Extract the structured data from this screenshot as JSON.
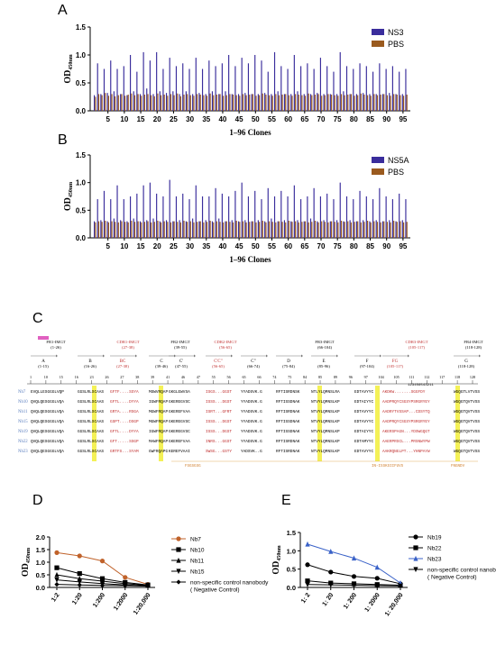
{
  "panels": {
    "A": {
      "label": "A"
    },
    "B": {
      "label": "B"
    },
    "C": {
      "label": "C"
    },
    "D": {
      "label": "D"
    },
    "E": {
      "label": "E"
    }
  },
  "chart_data": [
    {
      "id": "A",
      "type": "bar",
      "xlabel": "1–96 Clones",
      "ylabel": "OD450nm",
      "ylim": [
        0,
        1.5
      ],
      "yticks": [
        0.0,
        0.5,
        1.0,
        1.5
      ],
      "xticks": [
        5,
        10,
        15,
        20,
        25,
        30,
        35,
        40,
        45,
        50,
        55,
        60,
        65,
        70,
        75,
        80,
        85,
        90,
        95
      ],
      "legend_position": "top-right",
      "series": [
        {
          "name": "NS3",
          "color": "#3a2d9c",
          "values": [
            0.28,
            0.85,
            0.3,
            0.75,
            0.32,
            0.9,
            0.35,
            0.75,
            0.3,
            0.8,
            0.28,
            1.0,
            0.35,
            0.7,
            0.3,
            1.05,
            0.4,
            0.9,
            0.3,
            1.05,
            0.35,
            0.75,
            0.32,
            0.95,
            0.35,
            0.8,
            0.3,
            0.85,
            0.35,
            0.75,
            0.3,
            0.95,
            0.32,
            0.75,
            0.3,
            0.9,
            0.35,
            0.8,
            0.3,
            0.85,
            0.35,
            1.0,
            0.3,
            0.8,
            0.3,
            0.95,
            0.32,
            0.85,
            0.3,
            1.0,
            0.3,
            0.9,
            0.32,
            0.7,
            0.3,
            1.05,
            0.35,
            0.8,
            0.3,
            0.75,
            0.3,
            1.0,
            0.35,
            0.8,
            0.3,
            0.85,
            0.3,
            0.75,
            0.32,
            0.95,
            0.3,
            0.8,
            0.3,
            0.7,
            0.3,
            1.05,
            0.35,
            0.8,
            0.3,
            0.75,
            0.3,
            0.85,
            0.32,
            0.8,
            0.3,
            0.7,
            0.3,
            0.85,
            0.3,
            0.75,
            0.32,
            0.8,
            0.3,
            0.7,
            0.3,
            0.75
          ]
        },
        {
          "name": "PBS",
          "color": "#9a5a1e",
          "values": [
            0.25,
            0.3,
            0.28,
            0.32,
            0.27,
            0.3,
            0.26,
            0.28,
            0.3,
            0.27,
            0.29,
            0.31,
            0.28,
            0.3,
            0.27,
            0.29,
            0.3,
            0.28,
            0.26,
            0.31,
            0.28,
            0.29,
            0.27,
            0.3,
            0.28,
            0.31,
            0.26,
            0.29,
            0.3,
            0.28,
            0.27,
            0.3,
            0.29,
            0.28,
            0.27,
            0.31,
            0.28,
            0.29,
            0.3,
            0.27,
            0.28,
            0.3,
            0.29,
            0.28,
            0.27,
            0.3,
            0.28,
            0.29,
            0.3,
            0.27,
            0.28,
            0.31,
            0.29,
            0.28,
            0.27,
            0.3,
            0.28,
            0.29,
            0.3,
            0.28,
            0.27,
            0.3,
            0.29,
            0.28,
            0.27,
            0.31,
            0.28,
            0.29,
            0.3,
            0.27,
            0.28,
            0.3,
            0.29,
            0.28,
            0.27,
            0.3,
            0.28,
            0.29,
            0.3,
            0.27,
            0.28,
            0.31,
            0.29,
            0.28,
            0.27,
            0.3,
            0.28,
            0.29,
            0.3,
            0.28,
            0.27,
            0.3,
            0.29,
            0.28,
            0.27,
            0.29
          ]
        }
      ]
    },
    {
      "id": "B",
      "type": "bar",
      "xlabel": "1–96 Clones",
      "ylabel": "OD450nm",
      "ylim": [
        0,
        1.5
      ],
      "yticks": [
        0.0,
        0.5,
        1.0,
        1.5
      ],
      "xticks": [
        5,
        10,
        15,
        20,
        25,
        30,
        35,
        40,
        45,
        50,
        55,
        60,
        65,
        70,
        75,
        80,
        85,
        90,
        95
      ],
      "legend_position": "top-right",
      "series": [
        {
          "name": "NS5A",
          "color": "#3a2d9c",
          "values": [
            0.3,
            0.7,
            0.32,
            0.85,
            0.3,
            0.7,
            0.35,
            0.95,
            0.32,
            0.7,
            0.3,
            0.75,
            0.35,
            0.8,
            0.3,
            0.95,
            0.32,
            1.0,
            0.35,
            0.8,
            0.3,
            0.75,
            0.32,
            1.05,
            0.3,
            0.75,
            0.32,
            0.8,
            0.3,
            0.7,
            0.35,
            0.95,
            0.3,
            0.75,
            0.32,
            0.75,
            0.3,
            0.9,
            0.35,
            0.8,
            0.3,
            0.75,
            0.32,
            0.85,
            0.3,
            1.0,
            0.32,
            0.75,
            0.3,
            0.85,
            0.32,
            0.7,
            0.3,
            0.9,
            0.35,
            0.75,
            0.3,
            0.85,
            0.32,
            0.75,
            0.3,
            0.95,
            0.32,
            0.7,
            0.3,
            0.75,
            0.35,
            0.9,
            0.3,
            0.75,
            0.32,
            0.8,
            0.3,
            0.7,
            0.32,
            1.0,
            0.3,
            0.75,
            0.32,
            0.7,
            0.3,
            0.85,
            0.32,
            0.75,
            0.3,
            0.7,
            0.32,
            0.9,
            0.3,
            0.75,
            0.32,
            0.7,
            0.3,
            0.8,
            0.32,
            0.7
          ]
        },
        {
          "name": "PBS",
          "color": "#9a5a1e",
          "values": [
            0.28,
            0.3,
            0.29,
            0.31,
            0.28,
            0.3,
            0.29,
            0.28,
            0.3,
            0.29,
            0.28,
            0.31,
            0.29,
            0.3,
            0.28,
            0.29,
            0.3,
            0.28,
            0.29,
            0.31,
            0.28,
            0.3,
            0.29,
            0.28,
            0.3,
            0.29,
            0.28,
            0.31,
            0.29,
            0.3,
            0.28,
            0.29,
            0.3,
            0.28,
            0.29,
            0.31,
            0.28,
            0.3,
            0.29,
            0.28,
            0.3,
            0.29,
            0.28,
            0.31,
            0.29,
            0.3,
            0.28,
            0.29,
            0.3,
            0.28,
            0.29,
            0.31,
            0.28,
            0.3,
            0.29,
            0.28,
            0.3,
            0.29,
            0.28,
            0.31,
            0.29,
            0.3,
            0.28,
            0.29,
            0.3,
            0.28,
            0.29,
            0.31,
            0.28,
            0.3,
            0.29,
            0.28,
            0.3,
            0.29,
            0.28,
            0.31,
            0.29,
            0.3,
            0.28,
            0.29,
            0.3,
            0.28,
            0.29,
            0.31,
            0.28,
            0.3,
            0.29,
            0.28,
            0.3,
            0.29,
            0.28,
            0.31,
            0.29,
            0.3,
            0.28,
            0.29
          ]
        }
      ]
    },
    {
      "id": "D",
      "type": "line",
      "ylabel": "OD450nm",
      "ylim": [
        0,
        2.0
      ],
      "yticks": [
        0.0,
        0.5,
        1.0,
        1.5,
        2.0
      ],
      "categories": [
        "1:2",
        "1:20",
        "1:200",
        "1:2000",
        "1:20,000"
      ],
      "legend_position": "right",
      "series": [
        {
          "name": "Nb7",
          "color": "#c0622a",
          "marker": "circle",
          "values": [
            1.38,
            1.25,
            1.05,
            0.4,
            0.12
          ]
        },
        {
          "name": "Nb10",
          "color": "#000000",
          "marker": "square",
          "values": [
            0.78,
            0.55,
            0.35,
            0.2,
            0.1
          ]
        },
        {
          "name": "Nb11",
          "color": "#000000",
          "marker": "triangle",
          "values": [
            0.5,
            0.35,
            0.25,
            0.15,
            0.08
          ]
        },
        {
          "name": "Nb15",
          "color": "#000000",
          "marker": "triangle-down",
          "values": [
            0.3,
            0.22,
            0.15,
            0.1,
            0.06
          ]
        },
        {
          "name": "non-specific control nanobody\n( Negative Control)",
          "color": "#000000",
          "marker": "diamond",
          "values": [
            0.12,
            0.1,
            0.08,
            0.07,
            0.05
          ]
        }
      ]
    },
    {
      "id": "E",
      "type": "line",
      "ylabel": "OD450nm",
      "ylim": [
        0,
        1.5
      ],
      "yticks": [
        0.0,
        0.5,
        1.0,
        1.5
      ],
      "categories": [
        "1: 2",
        "1: 20",
        "1: 200",
        "1: 2000",
        "1: 20,000"
      ],
      "legend_position": "right",
      "series": [
        {
          "name": "Nb19",
          "color": "#000000",
          "marker": "circle",
          "values": [
            0.62,
            0.42,
            0.3,
            0.25,
            0.1
          ]
        },
        {
          "name": "Nb22",
          "color": "#000000",
          "marker": "square",
          "values": [
            0.18,
            0.12,
            0.1,
            0.08,
            0.06
          ]
        },
        {
          "name": "Nb23",
          "color": "#3a62c8",
          "marker": "triangle",
          "values": [
            1.18,
            0.98,
            0.8,
            0.55,
            0.12
          ]
        },
        {
          "name": "non-specific control nanobody\n( Negative Control)",
          "color": "#000000",
          "marker": "triangle-down",
          "values": [
            0.08,
            0.07,
            0.06,
            0.05,
            0.04
          ]
        }
      ]
    }
  ],
  "alignment": {
    "regions": [
      {
        "name": "FR1-IMGT",
        "range": "(1-26)",
        "sub": "A",
        "subrange": "(1-15)",
        "color": "#000"
      },
      {
        "name": "",
        "range": "",
        "sub": "B",
        "subrange": "(16-26)",
        "color": "#000"
      },
      {
        "name": "CDR1-IMGT",
        "range": "(27-38)",
        "sub": "BC",
        "subrange": "(27-38)",
        "color": "#c03030"
      },
      {
        "name": "FR2-IMGT",
        "range": "(39-55)",
        "sub": "C",
        "subrange": "(39-46)",
        "color": "#000"
      },
      {
        "name": "",
        "range": "",
        "sub": "C'",
        "subrange": "(47-55)",
        "color": "#000"
      },
      {
        "name": "CDR2-IMGT",
        "range": "(56-65)",
        "sub": "C'C\"",
        "subrange": "(56-65)",
        "color": "#c03030"
      },
      {
        "name": "",
        "range": "",
        "sub": "C\"",
        "subrange": "(66-74)",
        "color": "#000"
      },
      {
        "name": "FR3-IMGT",
        "range": "(66-104)",
        "sub": "D",
        "subrange": "(75-84)",
        "color": "#000"
      },
      {
        "name": "",
        "range": "",
        "sub": "E",
        "subrange": "(85-96)",
        "color": "#000"
      },
      {
        "name": "",
        "range": "",
        "sub": "F",
        "subrange": "(97-104)",
        "color": "#000"
      },
      {
        "name": "CDR3-IMGT",
        "range": "(105-117)",
        "sub": "FG",
        "subrange": "(105-117)",
        "color": "#c03030"
      },
      {
        "name": "FR4-IMGT",
        "range": "(118-128)",
        "sub": "G",
        "subrange": "(118-128)",
        "color": "#000"
      }
    ],
    "positions": [
      "1",
      "10",
      "15",
      "16",
      "23",
      "26",
      "27",
      "38",
      "39",
      "41",
      "46",
      "47",
      "55",
      "56",
      "65",
      "66",
      "74",
      "75",
      "84",
      "85",
      "89",
      "96",
      "97",
      "104",
      "105",
      "111",
      "112",
      "117",
      "118",
      "128"
    ],
    "cdr3_numbering": "111111111111\n123456543211",
    "rows": [
      {
        "id": "Nb7",
        "fr1": "EVQLLESGGGLVQP",
        "b": "GGSLRLSCAAS",
        "cdr1": "GFTF....SSYA",
        "fr2": "MSWVRQAP",
        "c2": "GKGLEWVSA",
        "cdr2": "ISGS...GGST",
        "c3": "YYADSVK.G",
        "d": "RFTISRDNSK",
        "e": "NTLYLQMNSLRA",
        "f": "EDTAVYYC",
        "cdr3": "AKDKW.......SGGFDY",
        "g": "WGQGTLVTVSS"
      },
      {
        "id": "Nb10",
        "fr1": "QVQLQESGGGLVQA",
        "b": "GGSLRLSCAAS",
        "cdr1": "GFTL....DYYA",
        "fr2": "IGWFRQAP",
        "c2": "GKEREGVSC",
        "cdr2": "ISSS...DGST",
        "c3": "YYADSVK.G",
        "d": "RFTISSDNAK",
        "e": "NTVYLQMNSLKP",
        "f": "EDTAIYYC",
        "cdr3": "AADPRQYCSGSYPSRGRYEY",
        "g": "WGQGTQVTVSS"
      },
      {
        "id": "Nb11",
        "fr1": "QVQLQESGGGLVQA",
        "b": "GGSLRLSCAAS",
        "cdr1": "GRTA....RSGA",
        "fr2": "MGWFRQAP",
        "c2": "GKEREFVAA",
        "cdr2": "ISRT...GFRT",
        "c3": "YYADSVK.G",
        "d": "RFTISRDNAK",
        "e": "NTVYLQMNSLKP",
        "f": "EDTAVYYC",
        "cdr3": "AADRYTVSSAP...CDSYTQ",
        "g": "WGQGTQVTVSS"
      },
      {
        "id": "Nb15",
        "fr1": "QVQLQESGGGLVQA",
        "b": "GGSLRLSCAAS",
        "cdr1": "GSPT....DSGP",
        "fr2": "MGWFRQAP",
        "c2": "GKEREGVSC",
        "cdr2": "ISSS...DGST",
        "c3": "YYADSVK.G",
        "d": "RFTISSDNAK",
        "e": "NTVYLQMNSLKP",
        "f": "EDTAVYYC",
        "cdr3": "AADPRQYCSGSYPSRGRYEY",
        "g": "WGQGTQVTVSS"
      },
      {
        "id": "Nb19",
        "fr1": "QVQLQESGGGLVQA",
        "b": "GGSLRLSCAAS",
        "cdr1": "GFTL....DYYA",
        "fr2": "IGWFRQAP",
        "c2": "GKEREGVSC",
        "cdr2": "ISSS...DGST",
        "c3": "YYADSVK.G",
        "d": "RFTISSDNAK",
        "e": "NTVYLQMNSLKP",
        "f": "EDTAIYYC",
        "cdr3": "AKERSPAGN...YDSWGQGT",
        "g": "WGQGTQVTVSS"
      },
      {
        "id": "Nb22",
        "fr1": "QVQLQESGGGLVQA",
        "b": "GGSLRLSCAAS",
        "cdr1": "GFT.....SSGP",
        "fr2": "MAWFRQAP",
        "c2": "GKEREFVAA",
        "cdr2": "INRS...GGST",
        "c3": "YYADSVK.G",
        "d": "RFTISRDNAK",
        "e": "NTVYLQMNSLKP",
        "f": "EDTAMYYC",
        "cdr3": "AAERPRSCL...PRSNWYPW",
        "g": "WGQGTQVTVSS"
      },
      {
        "id": "Nb23",
        "fr1": "QVQLQESGGGLVQA",
        "b": "GGSLRLSCAAS",
        "cdr1": "GRTFS...SYAM",
        "fr2": "GWFRQAPG",
        "c2": "KEREFVAAI",
        "cdr2": "SWSG...GSTY",
        "c3": "YADSVK..G",
        "d": "RFTISRDNAK",
        "e": "NTVYLQMNSLKP",
        "f": "EDTAVYYC",
        "cdr3": "AAKRQNGLPT...YHNPAYW",
        "g": "WGQGTQVTVSS"
      }
    ],
    "bottom_marks": [
      "FSGSGSG",
      "IN-ISSKSIIFUVS",
      "FNGNDV"
    ]
  }
}
